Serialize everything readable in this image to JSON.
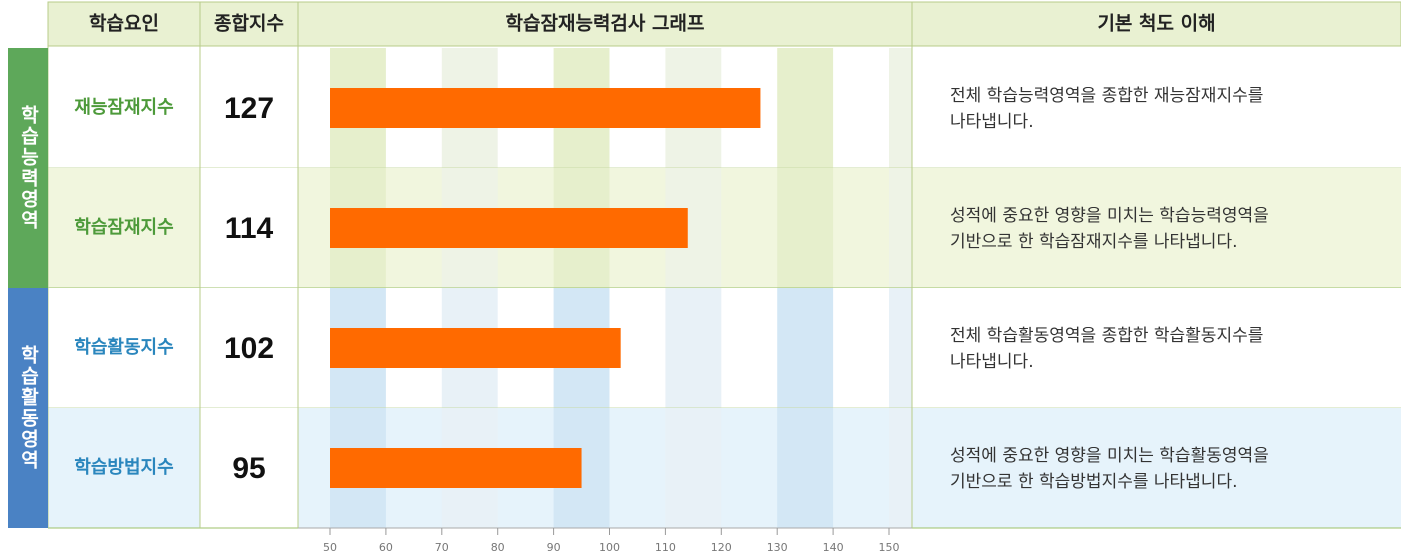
{
  "table": {
    "headers": [
      "학습요인",
      "종합지수",
      "학습잠재능력검사 그래프",
      "기본 척도 이해"
    ],
    "groups": [
      "학습능력영역",
      "학습활동영역"
    ],
    "rows": [
      {
        "name": "재능잠재지수",
        "desc": [
          "전체 학습능력영역을 종합한 재능잠재지수를",
          "나타냅니다."
        ]
      },
      {
        "name": "학습잠재지수",
        "desc": [
          "성적에 중요한 영향을 미치는 학습능력영역을",
          "기반으로 한 학습잠재지수를 나타냅니다."
        ]
      },
      {
        "name": "학습활동지수",
        "desc": [
          "전체 학습활동영역을 종합한 학습활동지수를",
          "나타냅니다."
        ]
      },
      {
        "name": "학습방법지수",
        "desc": [
          "성적에 중요한 영향을 미치는 학습활동영역을",
          "기반으로 한 학습방법지수를 나타냅니다."
        ]
      }
    ]
  },
  "chart_data": {
    "type": "bar",
    "orientation": "horizontal",
    "values": [
      127,
      114,
      102,
      95
    ],
    "color": "#ff6a00",
    "xlim": [
      50,
      150
    ],
    "xticks": [
      50,
      60,
      70,
      80,
      90,
      100,
      110,
      120,
      130,
      140,
      150
    ]
  }
}
